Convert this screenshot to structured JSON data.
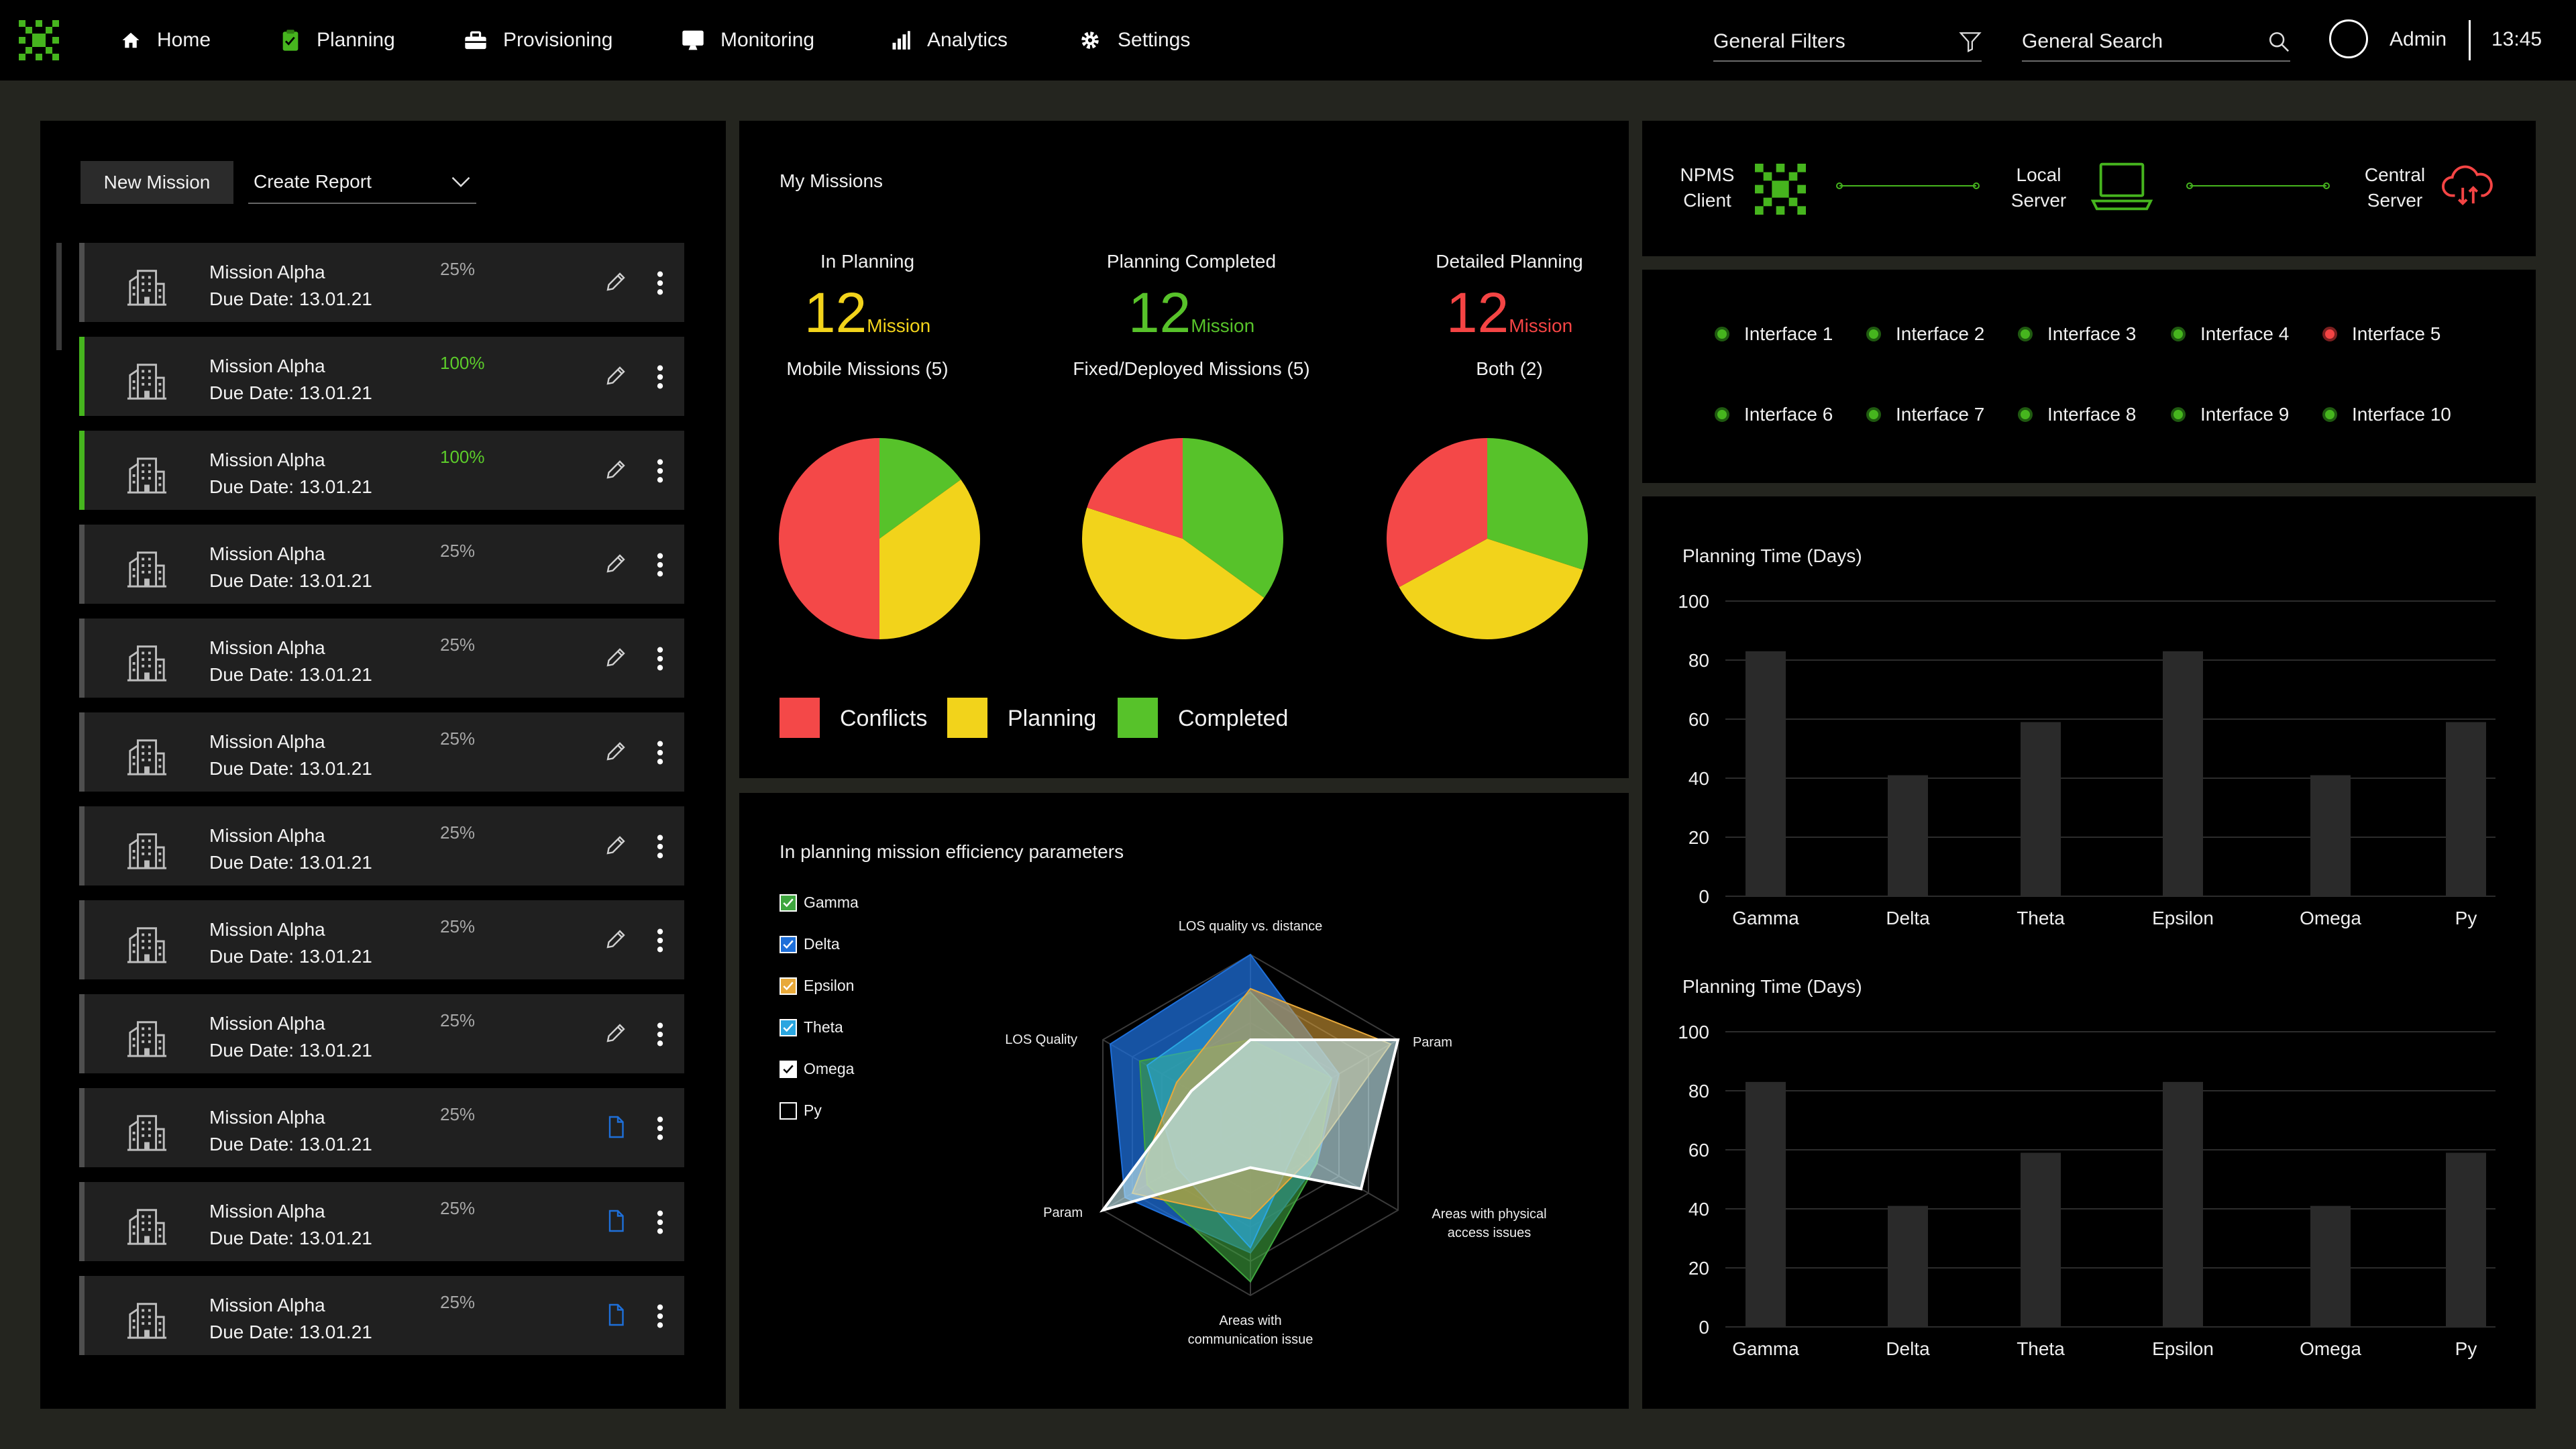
{
  "nav": {
    "items": [
      {
        "label": "Home",
        "icon": "home-icon"
      },
      {
        "label": "Planning",
        "icon": "clipboard-icon"
      },
      {
        "label": "Provisioning",
        "icon": "toolbox-icon"
      },
      {
        "label": "Monitoring",
        "icon": "monitor-icon"
      },
      {
        "label": "Analytics",
        "icon": "bar-chart-icon"
      },
      {
        "label": "Settings",
        "icon": "gear-icon"
      }
    ],
    "filters_label": "General Filters",
    "search_label": "General Search",
    "user": "Admin",
    "time": "13:45"
  },
  "missions": {
    "new_mission": "New Mission",
    "create_report": "Create Report",
    "items": [
      {
        "name": "Mission Alpha",
        "due": "Due Date: 13.01.21",
        "progress": "25%",
        "action": "edit"
      },
      {
        "name": "Mission Alpha",
        "due": "Due Date: 13.01.21",
        "progress": "100%",
        "action": "edit"
      },
      {
        "name": "Mission Alpha",
        "due": "Due Date: 13.01.21",
        "progress": "100%",
        "action": "edit"
      },
      {
        "name": "Mission Alpha",
        "due": "Due Date: 13.01.21",
        "progress": "25%",
        "action": "edit"
      },
      {
        "name": "Mission Alpha",
        "due": "Due Date: 13.01.21",
        "progress": "25%",
        "action": "edit"
      },
      {
        "name": "Mission Alpha",
        "due": "Due Date: 13.01.21",
        "progress": "25%",
        "action": "edit"
      },
      {
        "name": "Mission Alpha",
        "due": "Due Date: 13.01.21",
        "progress": "25%",
        "action": "edit"
      },
      {
        "name": "Mission Alpha",
        "due": "Due Date: 13.01.21",
        "progress": "25%",
        "action": "edit"
      },
      {
        "name": "Mission Alpha",
        "due": "Due Date: 13.01.21",
        "progress": "25%",
        "action": "edit"
      },
      {
        "name": "Mission Alpha",
        "due": "Due Date: 13.01.21",
        "progress": "25%",
        "action": "document"
      },
      {
        "name": "Mission Alpha",
        "due": "Due Date: 13.01.21",
        "progress": "25%",
        "action": "document"
      },
      {
        "name": "Mission Alpha",
        "due": "Due Date: 13.01.21",
        "progress": "25%",
        "action": "document"
      }
    ]
  },
  "my_missions": {
    "title": "My Missions",
    "stats": [
      {
        "label": "In Planning",
        "count": "12",
        "unit": "Mission",
        "color": "#f2d31b",
        "sub": "Mobile Missions  (5)"
      },
      {
        "label": "Planning Completed",
        "count": "12",
        "unit": "Mission",
        "color": "#57c22a",
        "sub": "Fixed/Deployed Missions (5)"
      },
      {
        "label": "Detailed Planning",
        "count": "12",
        "unit": "Mission",
        "color": "#f44444",
        "sub": "Both (2)"
      }
    ],
    "legend": [
      {
        "label": "Conflicts",
        "color": "#f44848"
      },
      {
        "label": "Planning",
        "color": "#f2d31b"
      },
      {
        "label": "Completed",
        "color": "#57c22a"
      }
    ]
  },
  "efficiency": {
    "title": "In planning mission efficiency parameters",
    "series": [
      {
        "name": "Gamma",
        "checked": true,
        "color": "#3fa63f"
      },
      {
        "name": "Delta",
        "checked": true,
        "color": "#1e6fd9"
      },
      {
        "name": "Epsilon",
        "checked": true,
        "color": "#e8a93a"
      },
      {
        "name": "Theta",
        "checked": true,
        "color": "#2aa6e0"
      },
      {
        "name": "Omega",
        "checked": true,
        "color": "#ffffff"
      },
      {
        "name": "Py",
        "checked": false,
        "color": "#ffffff"
      }
    ],
    "axes": [
      "LOS quality vs. distance",
      "Param",
      "Areas with physical access issues",
      "Areas  with communication issue",
      "Param",
      "LOS Quality"
    ]
  },
  "connection": {
    "nodes": [
      {
        "label": "NPMS Client"
      },
      {
        "label": "Local Server"
      },
      {
        "label": "Central Server"
      }
    ]
  },
  "interfaces": [
    {
      "label": "Interface 1",
      "status": "ok"
    },
    {
      "label": "Interface 2",
      "status": "ok"
    },
    {
      "label": "Interface 3",
      "status": "ok"
    },
    {
      "label": "Interface 4",
      "status": "ok"
    },
    {
      "label": "Interface 5",
      "status": "error"
    },
    {
      "label": "Interface 6",
      "status": "ok"
    },
    {
      "label": "Interface 7",
      "status": "ok"
    },
    {
      "label": "Interface 8",
      "status": "ok"
    },
    {
      "label": "Interface 9",
      "status": "ok"
    },
    {
      "label": "Interface 10",
      "status": "ok"
    }
  ],
  "colors": {
    "accent": "#46b51e",
    "ok": "#46b51e",
    "error": "#f44444"
  },
  "chart_data": [
    {
      "type": "pie",
      "title": "",
      "slices": [
        {
          "label": "Conflicts",
          "value": 50,
          "color": "#f44848"
        },
        {
          "label": "Planning",
          "value": 35,
          "color": "#f2d31b"
        },
        {
          "label": "Completed",
          "value": 15,
          "color": "#57c22a"
        }
      ]
    },
    {
      "type": "pie",
      "title": "",
      "slices": [
        {
          "label": "Conflicts",
          "value": 20,
          "color": "#f44848"
        },
        {
          "label": "Planning",
          "value": 45,
          "color": "#f2d31b"
        },
        {
          "label": "Completed",
          "value": 35,
          "color": "#57c22a"
        }
      ]
    },
    {
      "type": "pie",
      "title": "",
      "slices": [
        {
          "label": "Conflicts",
          "value": 33,
          "color": "#f44848"
        },
        {
          "label": "Planning",
          "value": 37,
          "color": "#f2d31b"
        },
        {
          "label": "Completed",
          "value": 30,
          "color": "#57c22a"
        }
      ]
    },
    {
      "type": "radar",
      "title": "In planning mission efficiency parameters",
      "axes": [
        "LOS quality vs. distance",
        "Param",
        "Areas with physical access issues",
        "Areas  with communication issue",
        "Param",
        "LOS Quality"
      ],
      "max": 1,
      "series": [
        {
          "name": "Delta",
          "values": [
            1.0,
            0.6,
            0.45,
            0.75,
            0.85,
            0.95
          ],
          "color": "#1e6fd9"
        },
        {
          "name": "Gamma",
          "values": [
            0.5,
            0.55,
            0.45,
            0.92,
            0.7,
            0.75
          ],
          "color": "#3fa63f"
        },
        {
          "name": "Theta",
          "values": [
            0.78,
            0.55,
            0.3,
            0.72,
            0.5,
            0.7
          ],
          "color": "#2aa6e0"
        },
        {
          "name": "Epsilon",
          "values": [
            0.8,
            0.95,
            0.4,
            0.55,
            0.8,
            0.5
          ],
          "color": "#e8a93a"
        },
        {
          "name": "Omega",
          "values": [
            0.5,
            1.0,
            0.75,
            0.25,
            1.0,
            0.4
          ],
          "color": "#ffffff"
        }
      ]
    },
    {
      "type": "bar",
      "title": "Planning Time (Days)",
      "categories": [
        "Gamma",
        "Delta",
        "Theta",
        "Epsilon",
        "Omega",
        "Py"
      ],
      "values": [
        83,
        41,
        59,
        83,
        41,
        59
      ],
      "ylim": [
        0,
        100
      ],
      "yticks": [
        0,
        20,
        40,
        60,
        80,
        100
      ],
      "grid": true
    },
    {
      "type": "bar",
      "title": "Planning Time (Days)",
      "categories": [
        "Gamma",
        "Delta",
        "Theta",
        "Epsilon",
        "Omega",
        "Py"
      ],
      "values": [
        83,
        41,
        59,
        83,
        41,
        59
      ],
      "ylim": [
        0,
        100
      ],
      "yticks": [
        0,
        20,
        40,
        60,
        80,
        100
      ],
      "grid": true
    }
  ]
}
